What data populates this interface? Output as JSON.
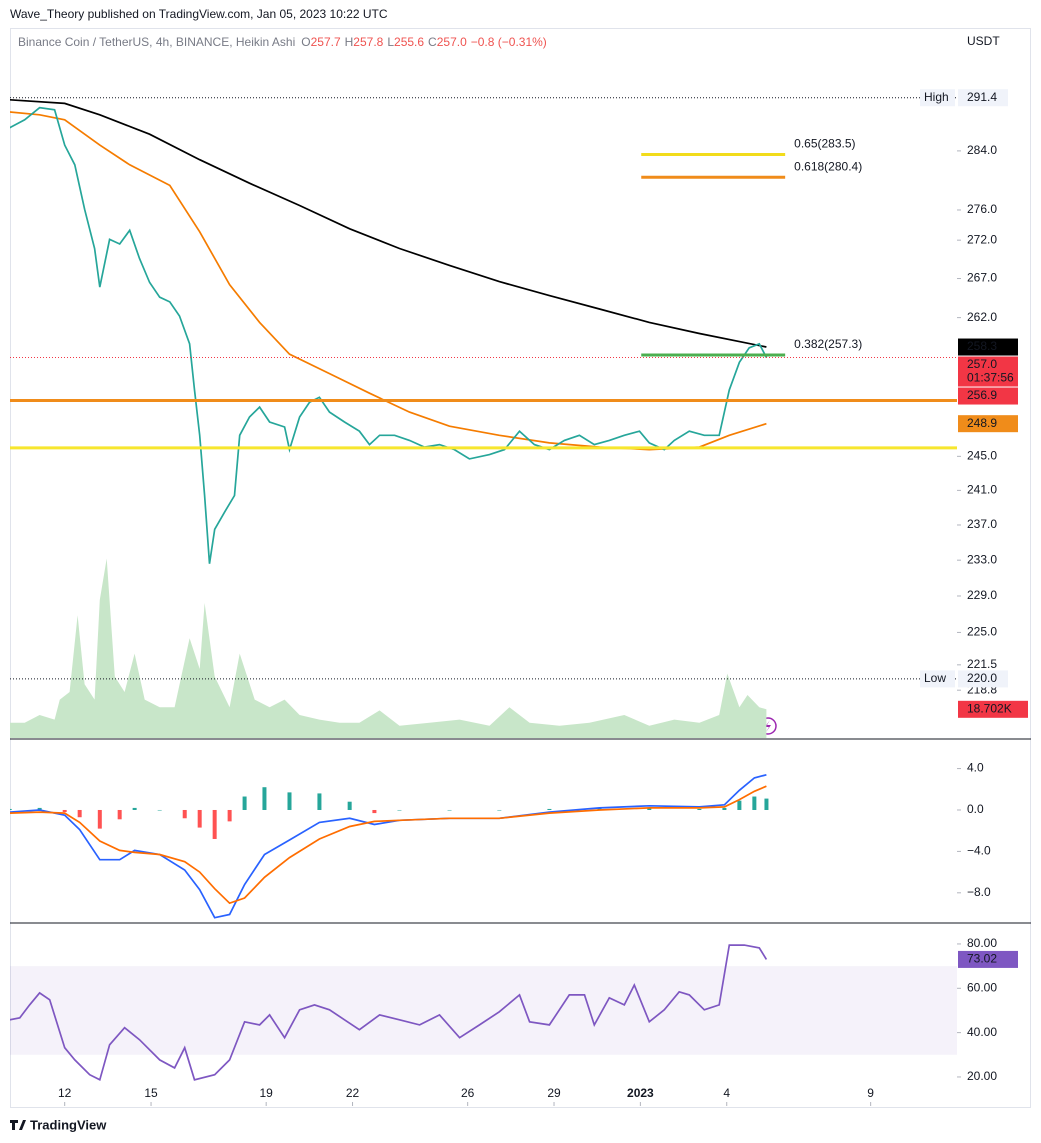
{
  "header": {
    "text": "Wave_Theory published on TradingView.com, Jan 05, 2023 10:22 UTC"
  },
  "chart_data": [
    {
      "type": "line",
      "title": "Binance Coin / TetherUS, 4h, BINANCE, Heikin Ashi",
      "ohlc": [
        {
          "name": "O",
          "value": 257.7
        },
        {
          "name": "H",
          "value": 257.8
        },
        {
          "name": "L",
          "value": 255.6
        },
        {
          "name": "C",
          "value": 257.0,
          "label": "257.0"
        }
      ],
      "change": "−0.8 (−0.31%)",
      "y_axis_title": "USDT",
      "log_scale": true,
      "xlim": [
        10.1,
        43.0
      ],
      "ylim": [
        213.8,
        301.1
      ],
      "yticks": [
        {
          "value": 284,
          "label": "284.0"
        },
        {
          "value": 276,
          "label": "276.0"
        },
        {
          "value": 272,
          "label": "272.0"
        },
        {
          "value": 267,
          "label": "267.0"
        },
        {
          "value": 262,
          "label": "262.0"
        },
        {
          "value": 245,
          "label": "245.0"
        },
        {
          "value": 241,
          "label": "241.0"
        },
        {
          "value": 237,
          "label": "237.0"
        },
        {
          "value": 233,
          "label": "233.0"
        },
        {
          "value": 229,
          "label": "229.0"
        },
        {
          "value": 225,
          "label": "225.0"
        },
        221.5,
        218.8
      ],
      "series": [
        {
          "kind": "area",
          "color": "#c8e6c9",
          "ylim": [
            0,
            120
          ],
          "x": [
            10.09,
            10.61,
            11.13,
            11.65,
            11.83,
            12.17,
            12.45,
            12.69,
            13.04,
            13.22,
            13.46,
            13.74,
            14.08,
            14.43,
            14.78,
            15.3,
            15.82,
            16.34,
            16.69,
            16.86,
            17.21,
            17.73,
            18.08,
            18.6,
            19.12,
            19.64,
            20.16,
            20.85,
            21.55,
            22.24,
            22.94,
            23.63,
            24.67,
            25.72,
            26.76,
            27.45,
            28.15,
            29.19,
            30.23,
            31.44,
            32.31,
            33.18,
            34.05,
            34.74,
            35.02,
            35.44,
            35.72,
            36.13,
            36.38
          ],
          "values": [
            10,
            10,
            15,
            12,
            25,
            30,
            80,
            35,
            25,
            90,
            117,
            40,
            30,
            55,
            25,
            20,
            20,
            65,
            45,
            88,
            40,
            20,
            55,
            25,
            20,
            25,
            15,
            12,
            10,
            10,
            18,
            8,
            10,
            12,
            8,
            20,
            10,
            8,
            10,
            15,
            8,
            12,
            10,
            15,
            42,
            20,
            28,
            20,
            18.702
          ]
        },
        {
          "kind": "line",
          "color": "#000000",
          "x": [
            10.09,
            12,
            13.22,
            14.95,
            16.69,
            18.42,
            20.16,
            21.9,
            23.63,
            25.37,
            27.1,
            28.84,
            30.58,
            32.31,
            34.05,
            36.38
          ],
          "values": [
            291.1,
            290.6,
            289.0,
            286.3,
            282.8,
            279.6,
            276.6,
            273.5,
            270.9,
            268.7,
            266.6,
            264.8,
            263.1,
            261.4,
            260.0,
            258.3
          ]
        },
        {
          "kind": "line",
          "color": "#f57c00",
          "x": [
            10.09,
            11.13,
            12,
            13.22,
            14.26,
            15.65,
            16.69,
            17.73,
            18.77,
            19.81,
            21.2,
            22.59,
            23.98,
            25.37,
            27.1,
            28.84,
            30.58,
            32.31,
            34.05,
            35.09,
            36.38
          ],
          "values": [
            289.4,
            289.0,
            288.3,
            284.8,
            282.1,
            279.3,
            273.1,
            266.2,
            261.4,
            257.4,
            255.0,
            252.6,
            250.3,
            248.6,
            247.5,
            246.6,
            246.1,
            245.8,
            246.1,
            247.5,
            248.9
          ]
        },
        {
          "kind": "line",
          "color": "#26a69a",
          "x": [
            10.09,
            10.61,
            11.13,
            11.65,
            12.0,
            12.35,
            12.69,
            13.04,
            13.22,
            13.56,
            13.91,
            14.26,
            14.6,
            14.95,
            15.3,
            15.65,
            15.99,
            16.34,
            16.51,
            16.69,
            16.86,
            17.03,
            17.21,
            17.56,
            17.9,
            18.08,
            18.42,
            18.77,
            19.12,
            19.64,
            19.81,
            20.16,
            20.51,
            20.85,
            21.2,
            21.72,
            22.24,
            22.59,
            22.94,
            23.46,
            23.98,
            24.5,
            25.02,
            25.54,
            26.06,
            26.76,
            27.28,
            27.8,
            28.32,
            28.84,
            29.36,
            29.88,
            30.4,
            30.92,
            31.44,
            31.97,
            32.31,
            32.83,
            33.18,
            33.7,
            34.22,
            34.74,
            35.09,
            35.44,
            35.78,
            36.13,
            36.38
          ],
          "values": [
            287.2,
            288.3,
            290.0,
            289.7,
            284.8,
            282.1,
            276.1,
            270.9,
            265.9,
            272.1,
            271.5,
            273.3,
            269.6,
            266.5,
            264.6,
            264.0,
            262.2,
            258.7,
            253.0,
            247.5,
            240.4,
            232.6,
            236.5,
            238.5,
            240.4,
            247.5,
            249.7,
            250.9,
            249.1,
            248.5,
            245.8,
            249.7,
            251.5,
            252.1,
            250.3,
            249.1,
            248.0,
            246.4,
            247.5,
            247.5,
            246.9,
            246.1,
            246.4,
            245.8,
            244.7,
            245.2,
            245.8,
            248.0,
            246.4,
            245.8,
            246.9,
            247.5,
            246.4,
            246.9,
            247.5,
            248.0,
            246.6,
            245.8,
            246.9,
            248.0,
            247.5,
            247.5,
            253.0,
            256.4,
            258.2,
            258.7,
            257.0
          ]
        }
      ],
      "levels": [
        {
          "value": 283.5,
          "label": "0.65(283.5)",
          "color": "#f2dc1b",
          "x": [
            32.03,
            37.03
          ]
        },
        {
          "value": 280.4,
          "label": "0.618(280.4)",
          "color": "#f08c1a",
          "x": [
            32.03,
            37.03
          ]
        },
        {
          "value": 257.3,
          "label": "0.382(257.3)",
          "color": "#4caf50",
          "x": [
            32.03,
            37.03
          ]
        },
        {
          "value": 251.7,
          "color": "#f08c1a"
        },
        {
          "value": 246.0,
          "color": "#f7e62e"
        }
      ],
      "extremes": [
        {
          "name": "High",
          "value": 291.4
        },
        {
          "name": "Low",
          "value": 220.0,
          "label": "220.0"
        }
      ],
      "price_tags": [
        {
          "value": 258.3,
          "color": "#000000"
        },
        {
          "value": 257.0,
          "label": "257.0",
          "countdown": "01:37:56",
          "color": "#f23645",
          "dotted": true
        },
        {
          "value": 256.9,
          "color": "#f23645"
        },
        {
          "value": 248.9,
          "color": "#f08c1a"
        }
      ],
      "volume_tag": {
        "value": 18.702,
        "label": "18.702K",
        "color": "#f23645"
      }
    },
    {
      "type": "line",
      "xlim": [
        10.1,
        43.0
      ],
      "ylim": [
        -10.82,
        6.76
      ],
      "yticks": [
        {
          "value": 4,
          "label": "4.0"
        },
        {
          "value": 0,
          "label": "0.0"
        },
        {
          "value": -4,
          "label": "−4.0"
        },
        {
          "value": -8,
          "label": "−8.0"
        }
      ],
      "x": [
        10.09,
        11.13,
        12,
        12.52,
        13.22,
        13.91,
        14.43,
        15.3,
        16.17,
        16.69,
        17.21,
        17.73,
        18.25,
        18.94,
        19.81,
        20.85,
        21.9,
        22.76,
        23.63,
        25.37,
        27.1,
        28.84,
        30.58,
        32.31,
        34.05,
        34.92,
        35.44,
        35.96,
        36.38
      ],
      "series": [
        {
          "kind": "histogram",
          "color": "#26a69a",
          "negative_color": "#ff5252",
          "values": [
            0.1,
            0.2,
            -0.2,
            -0.7,
            -1.8,
            -0.9,
            0.2,
            0.0,
            -0.8,
            -1.7,
            -2.8,
            -1.1,
            1.3,
            2.2,
            1.7,
            1.6,
            0.8,
            -0.3,
            0.0,
            0.0,
            0.0,
            0.1,
            0.2,
            0.2,
            0.1,
            0.2,
            0.9,
            1.3,
            1.1
          ]
        },
        {
          "kind": "line",
          "color": "#2962ff",
          "values": [
            -0.2,
            0,
            -0.5,
            -1.9,
            -4.8,
            -4.8,
            -3.9,
            -4.3,
            -5.8,
            -7.7,
            -10.4,
            -10.1,
            -7.2,
            -4.3,
            -2.9,
            -1.2,
            -0.8,
            -1.4,
            -1.0,
            -0.8,
            -0.8,
            -0.2,
            0.2,
            0.4,
            0.3,
            0.5,
            1.9,
            3.1,
            3.4
          ]
        },
        {
          "kind": "line",
          "color": "#ff6d00",
          "values": [
            -0.3,
            -0.2,
            -0.3,
            -1.2,
            -3.0,
            -3.9,
            -4.1,
            -4.3,
            -5.0,
            -6.0,
            -7.6,
            -9.0,
            -8.5,
            -6.5,
            -4.6,
            -2.8,
            -1.6,
            -1.1,
            -1.0,
            -0.8,
            -0.8,
            -0.3,
            0.0,
            0.2,
            0.2,
            0.3,
            1.0,
            1.8,
            2.3
          ]
        }
      ]
    },
    {
      "type": "line",
      "xlim": [
        10.1,
        43.0
      ],
      "ylim": [
        6.9,
        89.0
      ],
      "yticks": [
        {
          "value": 80,
          "label": "80.00"
        },
        {
          "value": 60,
          "label": "60.00"
        },
        {
          "value": 40,
          "label": "40.00"
        },
        {
          "value": 20,
          "label": "20.00"
        }
      ],
      "band": [
        30,
        70
      ],
      "band_color": "#7e57c2",
      "x": [
        10.09,
        10.44,
        10.78,
        11.13,
        11.48,
        12,
        12.35,
        12.87,
        13.22,
        13.56,
        14.08,
        14.6,
        15.3,
        15.82,
        16.17,
        16.51,
        17.21,
        17.73,
        18.25,
        18.77,
        19.12,
        19.64,
        20.16,
        20.68,
        21.2,
        21.72,
        22.24,
        22.94,
        23.63,
        24.33,
        25.02,
        25.72,
        26.41,
        27.1,
        27.8,
        28.15,
        28.84,
        29.53,
        30.06,
        30.4,
        30.92,
        31.44,
        31.79,
        32.31,
        32.83,
        33.35,
        33.7,
        34.22,
        34.74,
        35.09,
        35.61,
        36.13,
        36.38
      ],
      "series": [
        {
          "kind": "line",
          "color": "#7e57c2",
          "values": [
            45.8,
            46.7,
            52.5,
            57.9,
            54.8,
            33.2,
            27.7,
            21.0,
            18.7,
            34.5,
            42.2,
            36.8,
            27.7,
            24.1,
            33.2,
            18.7,
            21.0,
            27.7,
            44.9,
            43.5,
            48.0,
            37.7,
            50.3,
            52.5,
            50.3,
            45.8,
            41.3,
            48.0,
            45.8,
            43.5,
            48.0,
            37.7,
            43.5,
            49.4,
            57.0,
            44.9,
            43.5,
            57.0,
            57.0,
            43.5,
            55.7,
            52.5,
            61.5,
            44.9,
            50.3,
            58.4,
            57.0,
            50.3,
            52.5,
            79.5,
            79.5,
            78.2,
            73.02
          ]
        }
      ],
      "price_tags": [
        {
          "value": 73.02,
          "color": "#7e57c2"
        }
      ],
      "xticks": [
        12,
        15,
        19,
        22,
        26,
        29,
        {
          "value": 32,
          "label": "2023",
          "bold": true
        },
        {
          "value": 35,
          "label": "4"
        },
        {
          "value": 40,
          "label": "9"
        }
      ]
    }
  ],
  "footer": {
    "brand": "TradingView"
  }
}
